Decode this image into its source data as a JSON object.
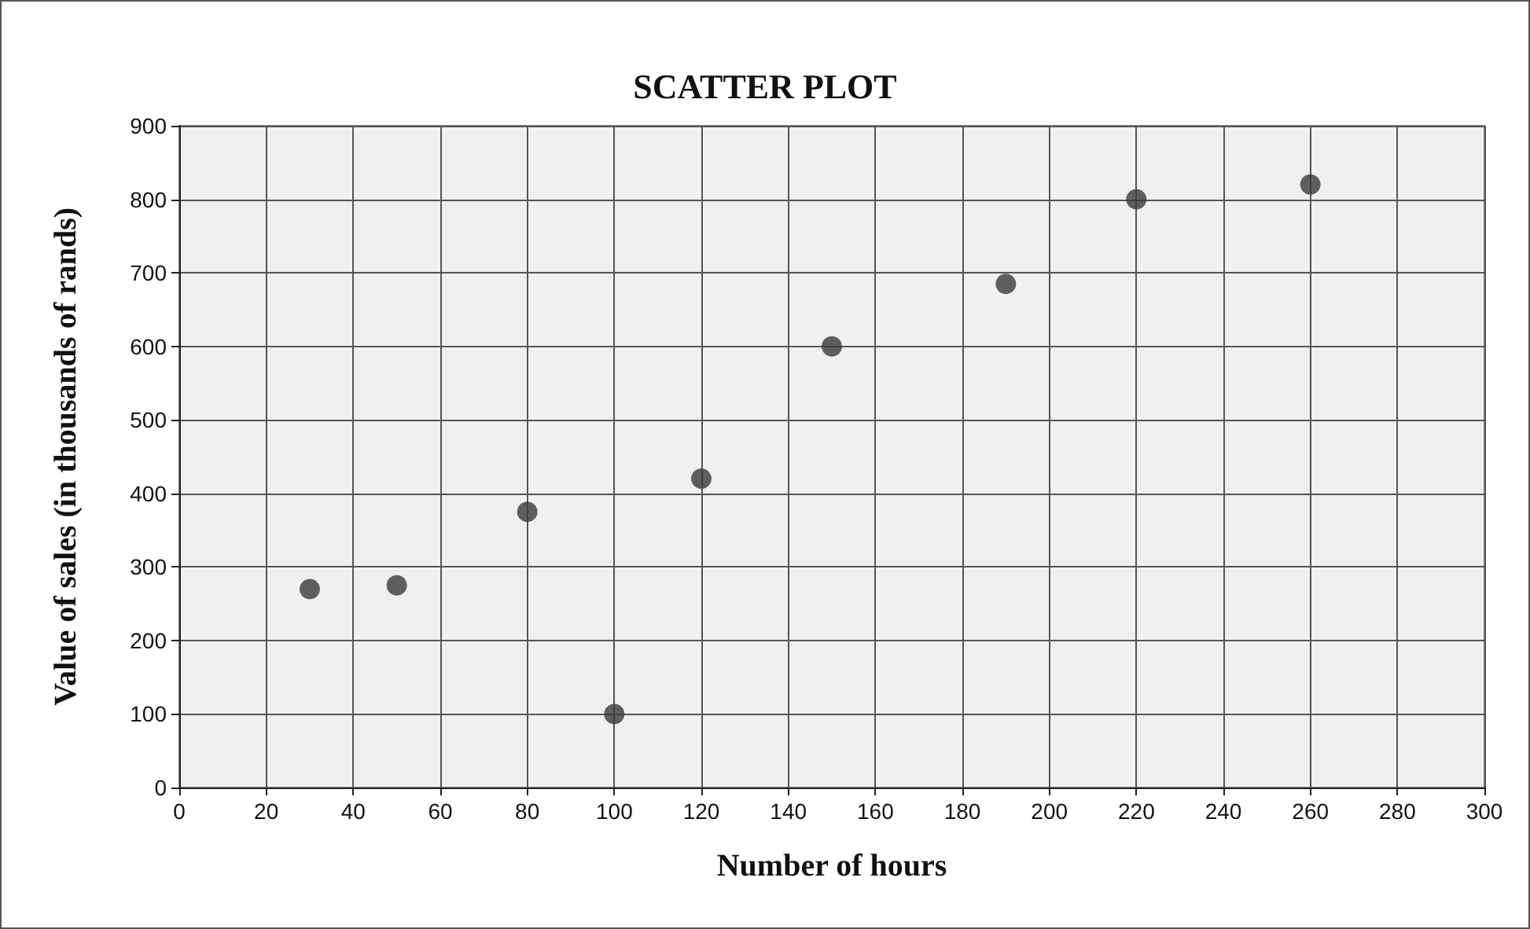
{
  "chart_data": {
    "type": "scatter",
    "title": "SCATTER PLOT",
    "xlabel": "Number of hours",
    "ylabel": "Value of sales (in thousands of rands)",
    "x": [
      30,
      50,
      80,
      100,
      120,
      150,
      190,
      220,
      260
    ],
    "series": [
      {
        "color": "#3a3a3a",
        "values": [
          270,
          275,
          375,
          100,
          420,
          600,
          685,
          800,
          820
        ]
      }
    ],
    "xlim": [
      0,
      300
    ],
    "xticks": [
      0,
      20,
      40,
      60,
      80,
      100,
      120,
      140,
      160,
      180,
      200,
      220,
      240,
      260,
      280,
      300
    ],
    "ylim": [
      0,
      900
    ],
    "yticks": [
      0,
      100,
      200,
      300,
      400,
      500,
      600,
      700,
      800,
      900
    ],
    "grid": true,
    "marker": "circle"
  }
}
